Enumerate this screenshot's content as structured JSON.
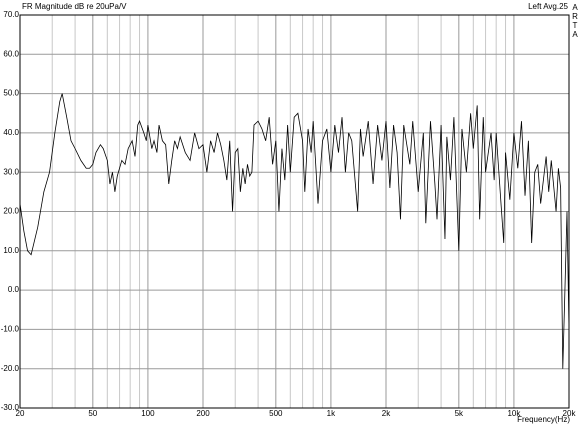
{
  "chart_data": {
    "type": "line",
    "title": "FR Magnitude dB re 20uPa/V",
    "subtitle": "Left  Avg.25",
    "watermark": "ARTA",
    "x_label": "Frequency(Hz)",
    "x_scale": "log",
    "xlim": [
      20,
      20000
    ],
    "ylim": [
      -30,
      70
    ],
    "xticks": [
      20,
      50,
      100,
      200,
      500,
      {
        "value": 1000,
        "label": "1k"
      },
      {
        "value": 2000,
        "label": "2k"
      },
      {
        "value": 5000,
        "label": "5k"
      },
      {
        "value": 10000,
        "label": "10k"
      },
      {
        "value": 20000,
        "label": "20k"
      }
    ],
    "xgrid": [
      30,
      40,
      60,
      70,
      80,
      90,
      300,
      400,
      600,
      700,
      800,
      900,
      3000,
      4000,
      6000,
      7000,
      8000,
      9000
    ],
    "yticks": [
      {
        "value": 70,
        "label": "70.0"
      },
      {
        "value": 60,
        "label": "60.0"
      },
      {
        "value": 50,
        "label": "50.0"
      },
      {
        "value": 40,
        "label": "40.0"
      },
      {
        "value": 30,
        "label": "30.0"
      },
      {
        "value": 20,
        "label": "20.0"
      },
      {
        "value": 10,
        "label": "10.0"
      },
      {
        "value": 0,
        "label": "0.0"
      },
      {
        "value": -10,
        "label": "-10.0"
      },
      {
        "value": -20,
        "label": "-20.0"
      },
      {
        "value": -30,
        "label": "-30.0"
      }
    ],
    "grid": true,
    "series": [
      {
        "color": "#000000",
        "x": [
          20,
          21,
          22,
          23,
          25,
          27,
          29,
          31,
          33,
          34,
          36,
          38,
          40,
          43,
          46,
          48,
          50,
          52,
          55,
          57,
          60,
          62,
          64,
          66,
          68,
          72,
          75,
          78,
          82,
          85,
          88,
          90,
          95,
          98,
          100,
          105,
          108,
          112,
          115,
          120,
          125,
          130,
          135,
          140,
          145,
          150,
          160,
          170,
          180,
          190,
          200,
          210,
          220,
          230,
          240,
          250,
          260,
          270,
          280,
          290,
          300,
          310,
          320,
          330,
          340,
          350,
          360,
          370,
          380,
          400,
          420,
          440,
          460,
          480,
          500,
          520,
          540,
          560,
          580,
          600,
          630,
          660,
          700,
          720,
          750,
          780,
          800,
          850,
          900,
          950,
          1000,
          1050,
          1100,
          1150,
          1200,
          1250,
          1300,
          1400,
          1450,
          1500,
          1600,
          1700,
          1800,
          1900,
          2000,
          2100,
          2200,
          2300,
          2400,
          2500,
          2700,
          2800,
          3000,
          3200,
          3300,
          3500,
          3700,
          3800,
          4000,
          4200,
          4300,
          4500,
          4700,
          5000,
          5200,
          5500,
          5800,
          6000,
          6300,
          6500,
          6800,
          7000,
          7500,
          7800,
          8000,
          8500,
          8800,
          9000,
          9500,
          10000,
          10500,
          11000,
          11500,
          12000,
          12500,
          13000,
          13500,
          14000,
          15000,
          15500,
          16000,
          17000,
          17500,
          18000,
          18500,
          19000,
          19500,
          20000
        ],
        "values": [
          22,
          15,
          10,
          9,
          16,
          25,
          30,
          40,
          48,
          50,
          44,
          38,
          36,
          33,
          31,
          31,
          32,
          35,
          37,
          36,
          33,
          27,
          30,
          25,
          29,
          33,
          32,
          36,
          38,
          34,
          42,
          43,
          40,
          38,
          42,
          36,
          38,
          35,
          42,
          38,
          37,
          27,
          33,
          38,
          36,
          39,
          35,
          33,
          40,
          36,
          37,
          30,
          38,
          35,
          40,
          37,
          33,
          28,
          38,
          20,
          35,
          36,
          25,
          31,
          27,
          32,
          29,
          30,
          42,
          43,
          41,
          38,
          44,
          32,
          38,
          20,
          36,
          28,
          42,
          30,
          44,
          45,
          38,
          25,
          41,
          35,
          43,
          22,
          38,
          41,
          30,
          42,
          35,
          44,
          30,
          40,
          38,
          20,
          41,
          34,
          43,
          27,
          42,
          33,
          43,
          26,
          42,
          35,
          18,
          42,
          32,
          43,
          25,
          40,
          17,
          43,
          27,
          18,
          42,
          13,
          39,
          28,
          44,
          10,
          41,
          30,
          45,
          36,
          47,
          18,
          44,
          30,
          40,
          28,
          40,
          22,
          12,
          35,
          23,
          40,
          31,
          43,
          24,
          38,
          12,
          30,
          32,
          22,
          34,
          25,
          33,
          20,
          31,
          26,
          -20,
          0,
          20,
          -10
        ]
      }
    ]
  }
}
